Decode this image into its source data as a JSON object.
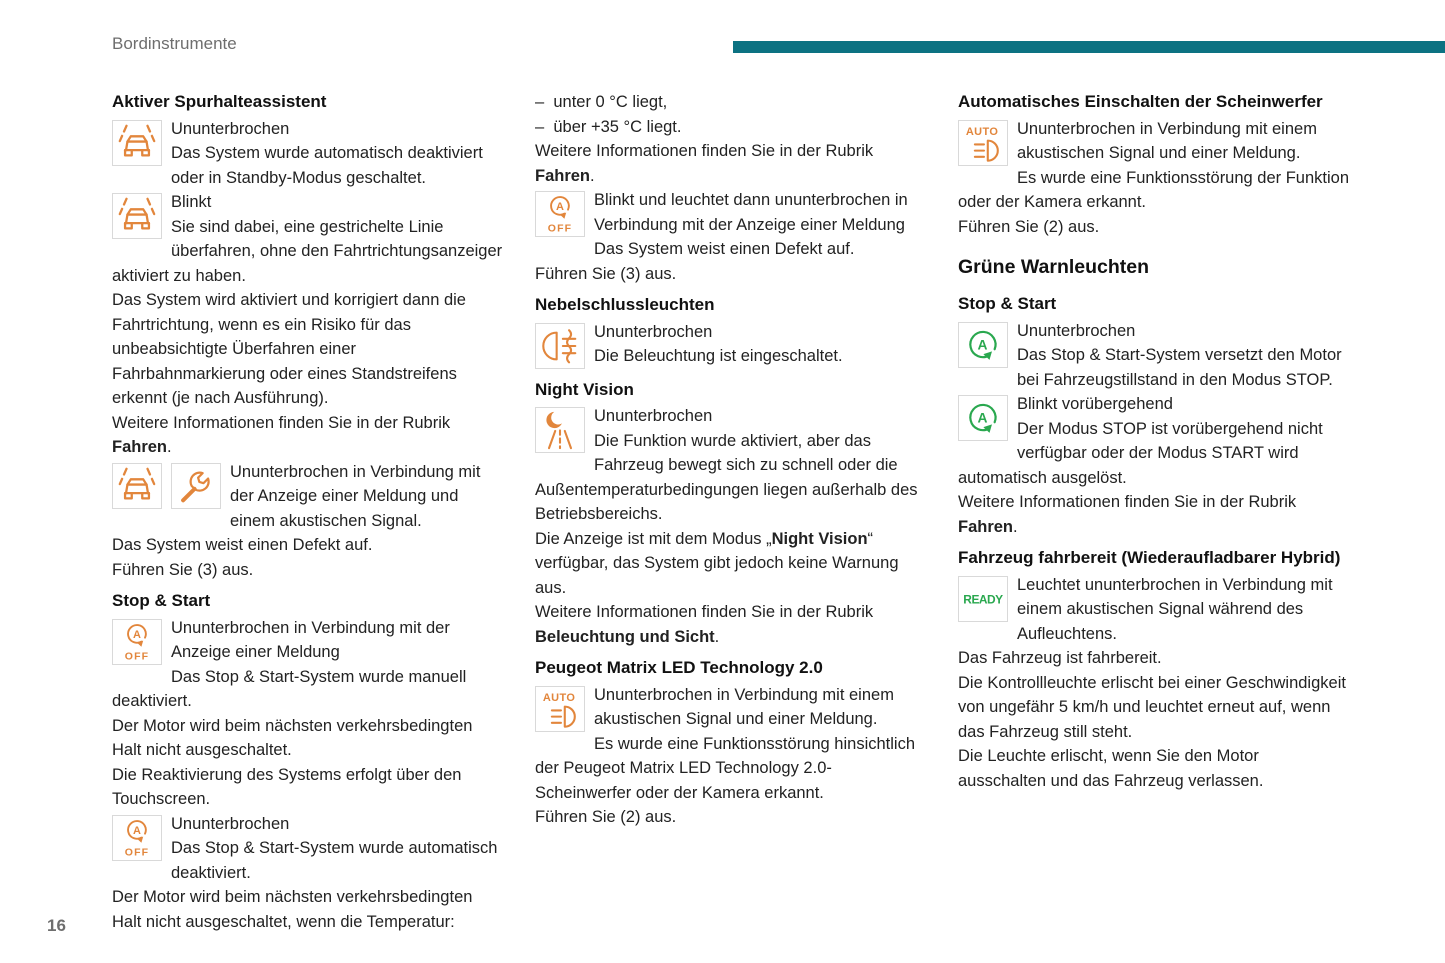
{
  "page": {
    "header": "Bordinstrumente",
    "page_number": "16"
  },
  "colors": {
    "accent_bar": "#0c7282",
    "icon_orange": "#e2863c",
    "icon_green": "#2aa84f",
    "muted_gray": "#6e6e6e"
  },
  "icon_labels": {
    "a": "A",
    "off": "OFF",
    "auto": "AUTO",
    "ready": "READY"
  },
  "col1": {
    "h_spurhalte": "Aktiver Spurhalteassistent",
    "spurhalte_b1": "Ununterbrochen<br>Das System wurde automatisch deaktiviert oder in Standby-Modus geschaltet.",
    "spurhalte_b2": "Blinkt<br>Sie sind dabei, eine gestrichelte Linie überfahren, ohne den Fahrtrichtungsanzeiger aktiviert zu haben.",
    "spurhalte_p1": "Das System wird aktiviert und korrigiert dann die Fahrtrichtung, wenn es ein Risiko für das unbeabsichtigte Überfahren einer Fahrbahnmarkierung oder eines Standstreifens erkennt (je nach Ausführung).",
    "spurhalte_p2": "Weitere Informationen finden Sie in der Rubrik <b>Fahren</b>.",
    "spurhalte_b3": "Ununterbrochen in Verbindung mit der Anzeige einer Meldung und einem akustischen Signal.<br>Das System weist einen Defekt auf.<br>Führen Sie (3) aus.",
    "h_stopstart": "Stop & Start",
    "stopstart_b1": "Ununterbrochen in Verbindung mit der Anzeige einer Meldung<br>Das Stop &amp; Start-System wurde manuell deaktiviert.<br>Der Motor wird beim nächsten verkehrsbedingten Halt nicht ausgeschaltet.<br>Die Reaktivierung des Systems erfolgt über den Touchscreen.",
    "stopstart_b2": "Ununterbrochen<br>Das Stop &amp; Start-System wurde automatisch deaktiviert.<br>Der Motor wird beim nächsten verkehrsbedingten Halt nicht ausgeschaltet, wenn die Temperatur:"
  },
  "col2": {
    "item1": "–&nbsp; unter 0 °C liegt,",
    "item2": "–&nbsp; über +35 °C liegt.",
    "p1": "Weitere Informationen finden Sie in der Rubrik <b>Fahren</b>.",
    "b1": "Blinkt und leuchtet dann ununterbrochen in Verbindung mit der Anzeige einer Meldung<br>Das System weist einen Defekt auf.<br>Führen Sie (3) aus.",
    "h_nebel": "Nebelschlussleuchten",
    "nebel_b1": "Ununterbrochen<br>Die Beleuchtung ist eingeschaltet.",
    "h_night": "Night Vision",
    "night_b1": "Ununterbrochen<br>Die Funktion wurde aktiviert, aber das Fahrzeug bewegt sich zu schnell oder die Außentemperaturbedingungen liegen außerhalb des Betriebsbereichs.",
    "night_p1": "Die Anzeige ist mit dem Modus „<b>Night Vision</b>“ verfügbar, das System gibt jedoch keine Warnung aus.",
    "night_p2": "Weitere Informationen finden Sie in der Rubrik <b>Beleuchtung und Sicht</b>.",
    "h_matrix": "Peugeot Matrix LED Technology 2.0",
    "matrix_b1": "Ununterbrochen in Verbindung mit einem akustischen Signal und einer Meldung.<br>Es wurde eine Funktionsstörung hinsichtlich der Peugeot Matrix LED Technology 2.0-Scheinwerfer oder der Kamera erkannt.<br>Führen Sie (2) aus."
  },
  "col3": {
    "h_auto": "Automatisches Einschalten der Scheinwerfer",
    "auto_b1": "Ununterbrochen in Verbindung mit einem akustischen Signal und einer Meldung.<br>Es wurde eine Funktionsstörung der Funktion oder der Kamera erkannt.<br>Führen Sie (2) aus.",
    "h_gruen": "Grüne Warnleuchten",
    "h_stopstart": "Stop & Start",
    "stopstart_b1": "Ununterbrochen<br>Das Stop &amp; Start-System versetzt den Motor bei Fahrzeugstillstand in den Modus STOP.",
    "stopstart_b2": "Blinkt vorübergehend<br>Der Modus STOP ist vorübergehend nicht verfügbar oder der Modus START wird automatisch ausgelöst.",
    "stopstart_p1": "Weitere Informationen finden Sie in der Rubrik <b>Fahren</b>.",
    "h_ready": "Fahrzeug fahrbereit (Wiederaufladbarer Hybrid)",
    "ready_b1": "Leuchtet ununterbrochen in Verbindung mit einem akustischen Signal während des Aufleuchtens.<br>Das Fahrzeug ist fahrbereit.<br>Die Kontrollleuchte erlischt bei einer Geschwindigkeit von ungefähr 5 km/h und leuchtet erneut auf, wenn das Fahrzeug still steht.<br>Die Leuchte erlischt, wenn Sie den Motor ausschalten und das Fahrzeug verlassen."
  }
}
